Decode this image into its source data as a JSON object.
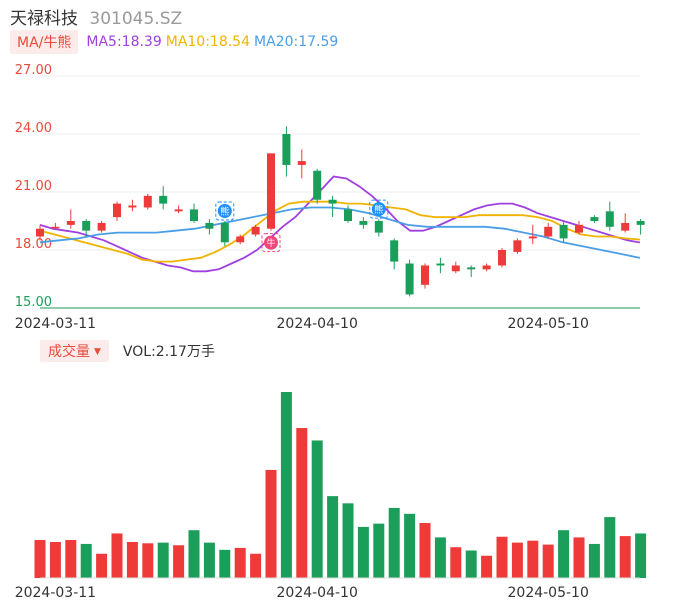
{
  "header": {
    "stock_name": "天禄科技",
    "stock_code": "301045.SZ"
  },
  "ma_legend": {
    "toggle_label": "MA/牛熊",
    "ma5": {
      "label": "MA5:18.39",
      "color": "#a040e0"
    },
    "ma10": {
      "label": "MA10:18.54",
      "color": "#f0b400"
    },
    "ma20": {
      "label": "MA20:17.59",
      "color": "#4a9ee8"
    }
  },
  "volume_legend": {
    "toggle_label": "成交量",
    "value_label": "VOL:2.17万手"
  },
  "colors": {
    "up": "#ef3a3a",
    "down": "#1a9e5a",
    "bull_icon": "#f0467a",
    "bear_icon": "#1e90ff"
  },
  "markers": {
    "bull": "牛",
    "bear": "熊"
  },
  "chart_data": [
    {
      "type": "candlestick",
      "title": "",
      "y_ticks": [
        "27.00",
        "24.00",
        "21.00",
        "18.00",
        "15.00"
      ],
      "x_ticks": [
        {
          "label": "2024-03-11",
          "index": 1
        },
        {
          "label": "2024-04-10",
          "index": 18
        },
        {
          "label": "2024-05-10",
          "index": 33
        }
      ],
      "ylim": [
        15,
        27
      ],
      "candles": [
        {
          "o": 18.7,
          "c": 19.1,
          "h": 19.3,
          "l": 18.5
        },
        {
          "o": 19.2,
          "c": 19.2,
          "h": 19.4,
          "l": 19.1
        },
        {
          "o": 19.3,
          "c": 19.5,
          "h": 20.1,
          "l": 19.1
        },
        {
          "o": 19.5,
          "c": 19.0,
          "h": 19.6,
          "l": 18.7
        },
        {
          "o": 19.0,
          "c": 19.4,
          "h": 19.5,
          "l": 18.9
        },
        {
          "o": 19.7,
          "c": 20.4,
          "h": 20.5,
          "l": 19.5
        },
        {
          "o": 20.2,
          "c": 20.3,
          "h": 20.6,
          "l": 20.0
        },
        {
          "o": 20.2,
          "c": 20.8,
          "h": 20.9,
          "l": 20.1
        },
        {
          "o": 20.8,
          "c": 20.4,
          "h": 21.3,
          "l": 20.1
        },
        {
          "o": 20.0,
          "c": 20.1,
          "h": 20.3,
          "l": 19.9
        },
        {
          "o": 20.1,
          "c": 19.5,
          "h": 20.4,
          "l": 19.4
        },
        {
          "o": 19.4,
          "c": 19.1,
          "h": 19.6,
          "l": 18.8
        },
        {
          "o": 19.4,
          "c": 18.4,
          "h": 19.5,
          "l": 18.2
        },
        {
          "o": 18.4,
          "c": 18.7,
          "h": 18.8,
          "l": 18.3
        },
        {
          "o": 18.8,
          "c": 19.2,
          "h": 19.3,
          "l": 18.7
        },
        {
          "o": 19.1,
          "c": 23.0,
          "h": 23.0,
          "l": 19.0
        },
        {
          "o": 24.0,
          "c": 22.4,
          "h": 24.4,
          "l": 21.8
        },
        {
          "o": 22.4,
          "c": 22.6,
          "h": 23.2,
          "l": 21.7
        },
        {
          "o": 22.1,
          "c": 20.6,
          "h": 22.2,
          "l": 20.4
        },
        {
          "o": 20.6,
          "c": 20.4,
          "h": 20.8,
          "l": 19.7
        },
        {
          "o": 20.1,
          "c": 19.5,
          "h": 20.3,
          "l": 19.4
        },
        {
          "o": 19.5,
          "c": 19.3,
          "h": 19.7,
          "l": 19.1
        },
        {
          "o": 19.5,
          "c": 18.9,
          "h": 19.6,
          "l": 18.7
        },
        {
          "o": 18.5,
          "c": 17.4,
          "h": 18.6,
          "l": 17.0
        },
        {
          "o": 17.3,
          "c": 15.7,
          "h": 17.5,
          "l": 15.6
        },
        {
          "o": 16.2,
          "c": 17.2,
          "h": 17.3,
          "l": 16.0
        },
        {
          "o": 17.3,
          "c": 17.2,
          "h": 17.6,
          "l": 16.8
        },
        {
          "o": 16.9,
          "c": 17.2,
          "h": 17.4,
          "l": 16.8
        },
        {
          "o": 17.1,
          "c": 17.0,
          "h": 17.2,
          "l": 16.6
        },
        {
          "o": 17.0,
          "c": 17.2,
          "h": 17.3,
          "l": 16.9
        },
        {
          "o": 17.2,
          "c": 18.0,
          "h": 18.1,
          "l": 17.1
        },
        {
          "o": 17.9,
          "c": 18.5,
          "h": 18.6,
          "l": 17.8
        },
        {
          "o": 18.6,
          "c": 18.7,
          "h": 19.3,
          "l": 18.3
        },
        {
          "o": 18.7,
          "c": 19.2,
          "h": 19.4,
          "l": 18.6
        },
        {
          "o": 19.3,
          "c": 18.6,
          "h": 19.5,
          "l": 18.4
        },
        {
          "o": 18.9,
          "c": 19.3,
          "h": 19.5,
          "l": 18.8
        },
        {
          "o": 19.7,
          "c": 19.5,
          "h": 19.8,
          "l": 19.4
        },
        {
          "o": 20.0,
          "c": 19.2,
          "h": 20.5,
          "l": 19.0
        },
        {
          "o": 19.0,
          "c": 19.4,
          "h": 19.9,
          "l": 18.9
        },
        {
          "o": 19.5,
          "c": 19.3,
          "h": 19.6,
          "l": 18.8
        }
      ],
      "series": [
        {
          "key": "ma5",
          "values": [
            19.3,
            19.1,
            19.0,
            18.9,
            18.7,
            18.5,
            18.2,
            17.9,
            17.6,
            17.4,
            17.2,
            17.1,
            16.9,
            16.9,
            17.0,
            17.3,
            17.6,
            18.0,
            18.6,
            19.2,
            19.7,
            20.4,
            21.1,
            21.8,
            21.7,
            21.3,
            20.8,
            20.2,
            19.5,
            19.0,
            19.0,
            19.2,
            19.5,
            19.8,
            20.1,
            20.3,
            20.4,
            20.4,
            20.2,
            19.9,
            19.7,
            19.5,
            19.3,
            19.1,
            18.9,
            18.7,
            18.5,
            18.39
          ]
        },
        {
          "key": "ma10",
          "values": [
            19.0,
            18.8,
            18.6,
            18.4,
            18.2,
            18.0,
            17.8,
            17.5,
            17.4,
            17.4,
            17.5,
            17.6,
            17.9,
            18.3,
            18.8,
            19.4,
            20.0,
            20.4,
            20.5,
            20.5,
            20.5,
            20.4,
            20.4,
            20.3,
            20.2,
            20.1,
            19.8,
            19.7,
            19.7,
            19.7,
            19.8,
            19.8,
            19.8,
            19.8,
            19.7,
            19.5,
            19.1,
            18.8,
            18.7,
            18.7,
            18.6,
            18.54
          ]
        },
        {
          "key": "ma20",
          "values": [
            18.4,
            18.5,
            18.6,
            18.8,
            18.9,
            18.9,
            18.9,
            19.0,
            19.1,
            19.3,
            19.5,
            19.7,
            19.9,
            20.1,
            20.2,
            20.2,
            20.1,
            19.9,
            19.6,
            19.3,
            19.2,
            19.2,
            19.2,
            19.2,
            19.1,
            18.9,
            18.7,
            18.4,
            18.2,
            18.0,
            17.8,
            17.59
          ]
        }
      ],
      "signals": [
        {
          "type": "bear",
          "index": 12
        },
        {
          "type": "bull",
          "index": 15
        },
        {
          "type": "bear",
          "index": 22
        }
      ]
    },
    {
      "type": "bar",
      "title": "",
      "x_ticks": [
        "2024-03-11",
        "2024-04-10",
        "2024-05-10"
      ],
      "volumes": [
        5.8,
        5.5,
        5.8,
        5.2,
        3.7,
        6.8,
        5.5,
        5.3,
        5.4,
        5.0,
        7.3,
        5.4,
        4.3,
        4.6,
        3.7,
        16.5,
        28.4,
        22.9,
        21.0,
        12.5,
        11.4,
        7.8,
        8.3,
        10.7,
        9.8,
        8.4,
        6.2,
        4.7,
        4.2,
        3.4,
        6.3,
        5.4,
        5.7,
        5.1,
        7.3,
        6.2,
        5.2,
        9.3,
        6.4,
        6.8
      ]
    }
  ]
}
